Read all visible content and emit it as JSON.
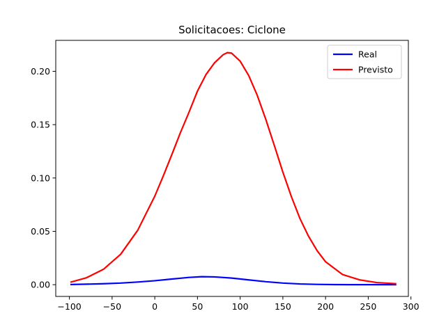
{
  "chart_data": {
    "type": "line",
    "title": "Solicitacoes: Ciclone",
    "xlabel": "",
    "ylabel": "",
    "xlim": [
      -116,
      297
    ],
    "ylim": [
      -0.011,
      0.229
    ],
    "xticks": [
      -100,
      -50,
      0,
      50,
      100,
      150,
      200,
      250,
      300
    ],
    "xtick_labels": [
      "−100",
      "−50",
      "0",
      "50",
      "100",
      "150",
      "200",
      "250",
      "300"
    ],
    "yticks": [
      0.0,
      0.05,
      0.1,
      0.15,
      0.2
    ],
    "ytick_labels": [
      "0.00",
      "0.05",
      "0.10",
      "0.15",
      "0.20"
    ],
    "grid": false,
    "legend_position": "top-right",
    "series": [
      {
        "name": "Real",
        "color": "#0000ff",
        "x": [
          -98,
          -80,
          -60,
          -40,
          -20,
          0,
          20,
          40,
          55,
          70,
          90,
          110,
          130,
          150,
          170,
          190,
          210,
          230,
          250,
          282
        ],
        "y": [
          0.0002,
          0.0005,
          0.0009,
          0.0015,
          0.0025,
          0.0037,
          0.0053,
          0.0068,
          0.0075,
          0.0073,
          0.0062,
          0.0045,
          0.0028,
          0.0015,
          0.0007,
          0.0003,
          0.0001,
          0.0,
          0.0,
          0.0
        ]
      },
      {
        "name": "Previsto",
        "color": "#ff0000",
        "x": [
          -98,
          -80,
          -60,
          -40,
          -20,
          0,
          10,
          20,
          30,
          40,
          50,
          60,
          70,
          80,
          85,
          90,
          100,
          110,
          120,
          130,
          140,
          150,
          160,
          170,
          180,
          190,
          200,
          220,
          240,
          260,
          282
        ],
        "y": [
          0.0025,
          0.0065,
          0.0145,
          0.0285,
          0.051,
          0.083,
          0.102,
          0.122,
          0.1425,
          0.1615,
          0.1815,
          0.197,
          0.208,
          0.2155,
          0.2175,
          0.217,
          0.2095,
          0.196,
          0.1775,
          0.155,
          0.1305,
          0.1055,
          0.0825,
          0.062,
          0.0455,
          0.032,
          0.0215,
          0.0095,
          0.0045,
          0.002,
          0.001
        ]
      }
    ]
  }
}
